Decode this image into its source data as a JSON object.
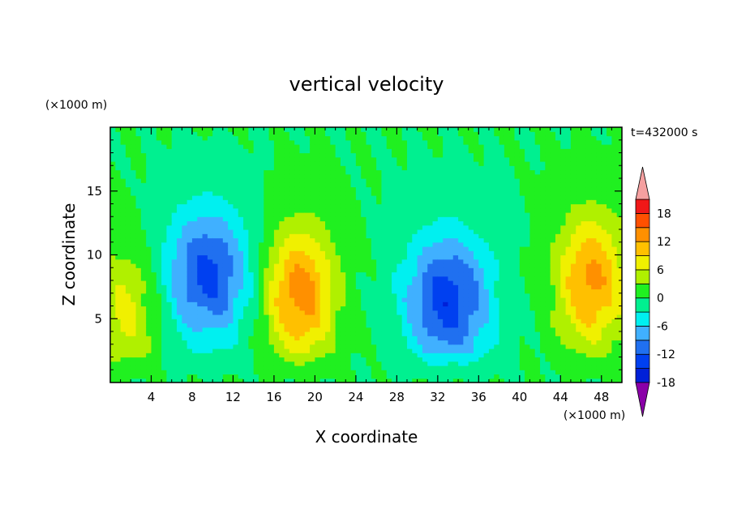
{
  "chart_data": {
    "type": "heatmap",
    "title": "vertical velocity",
    "xlabel": "X coordinate",
    "ylabel": "Z coordinate",
    "x_unit": "(×1000 m)",
    "y_unit": "(×1000 m)",
    "time_label": "t=432000 s",
    "xlim": [
      0,
      50
    ],
    "ylim": [
      0,
      20
    ],
    "x_ticks": [
      4,
      8,
      12,
      16,
      20,
      24,
      28,
      32,
      36,
      40,
      44,
      48
    ],
    "y_ticks": [
      5,
      10,
      15
    ],
    "colorbar": {
      "levels": [
        -21,
        -18,
        -15,
        -12,
        -9,
        -6,
        -3,
        0,
        3,
        6,
        9,
        12,
        15,
        18,
        21
      ],
      "labeled": [
        18,
        12,
        6,
        0,
        -6,
        -12,
        -18
      ],
      "colors": [
        "#8a00a8",
        "#2c0ab2",
        "#0020d8",
        "#0040f0",
        "#2070f0",
        "#40b0ff",
        "#00f0f0",
        "#00f090",
        "#20f020",
        "#b0f000",
        "#f0f000",
        "#ffc000",
        "#ff9000",
        "#ff5000",
        "#f01818",
        "#f5a0a0"
      ]
    },
    "field_features": [
      {
        "kind": "updraft",
        "x": 1.5,
        "z": 5.5,
        "peak": 7
      },
      {
        "kind": "downdraft",
        "x": 9.5,
        "z": 8.5,
        "peak": -13
      },
      {
        "kind": "updraft",
        "x": 18.5,
        "z": 7,
        "peak": 14
      },
      {
        "kind": "downdraft",
        "x": 33,
        "z": 6.5,
        "peak": -14
      },
      {
        "kind": "updraft",
        "x": 47,
        "z": 8,
        "peak": 13
      }
    ]
  }
}
